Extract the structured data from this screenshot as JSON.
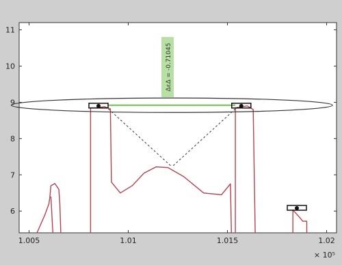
{
  "chart_data": {
    "type": "line",
    "title": "",
    "xlabel": "",
    "ylabel": "",
    "xlim": [
      1.0045,
      1.0205
    ],
    "ylim": [
      5.4,
      11.2
    ],
    "x_exponent_label": "× 10⁵",
    "x_ticks": [
      1.005,
      1.01,
      1.015,
      1.02
    ],
    "x_tick_labels": [
      "1.005",
      "1.01",
      "1.015",
      "1.02"
    ],
    "y_ticks": [
      6,
      7,
      8,
      9,
      10,
      11
    ],
    "y_tick_labels": [
      "6",
      "7",
      "8",
      "9",
      "10",
      "11"
    ],
    "grid": false,
    "series": [
      {
        "color": "#b5414b",
        "segments": [
          [
            [
              1.0054,
              5.4
            ],
            [
              1.0058,
              5.9
            ],
            [
              1.006,
              6.2
            ],
            [
              1.00605,
              6.4
            ],
            [
              1.0061,
              6.7
            ],
            [
              1.0063,
              6.76
            ],
            [
              1.0065,
              6.6
            ],
            [
              1.00655,
              6.2
            ],
            [
              1.0066,
              5.4
            ]
          ],
          [
            [
              1.0061,
              6.4
            ],
            [
              1.0062,
              5.4
            ]
          ],
          [
            [
              1.0081,
              5.4
            ],
            [
              1.0081,
              7.0
            ],
            [
              1.0081,
              8.85
            ],
            [
              1.0084,
              8.85
            ],
            [
              1.0088,
              8.88
            ],
            [
              1.0091,
              8.82
            ],
            [
              1.00915,
              6.8
            ],
            [
              1.0096,
              6.5
            ],
            [
              1.0102,
              6.7
            ],
            [
              1.0108,
              7.05
            ],
            [
              1.0114,
              7.22
            ],
            [
              1.012,
              7.2
            ],
            [
              1.0128,
              6.95
            ],
            [
              1.0138,
              6.5
            ],
            [
              1.0147,
              6.45
            ],
            [
              1.01515,
              6.75
            ],
            [
              1.0152,
              5.4
            ]
          ],
          [
            [
              1.0154,
              5.4
            ],
            [
              1.0154,
              8.85
            ],
            [
              1.016,
              8.9
            ],
            [
              1.0163,
              8.8
            ],
            [
              1.0164,
              5.4
            ]
          ],
          [
            [
              1.0183,
              5.4
            ],
            [
              1.0183,
              6.03
            ],
            [
              1.0186,
              5.85
            ],
            [
              1.0188,
              5.72
            ],
            [
              1.019,
              5.72
            ],
            [
              1.019,
              5.4
            ]
          ]
        ]
      }
    ],
    "annotations": [
      {
        "type": "ellipse",
        "center": [
          1.0122,
          8.92
        ],
        "rx": 0.0081,
        "ry": 0.2,
        "stroke": "#333333"
      },
      {
        "type": "dashed-lines",
        "from": [
          [
            1.009,
            8.82
          ],
          [
            1.0154,
            8.82
          ]
        ],
        "to": [
          1.0122,
          7.22
        ],
        "stroke": "#333333"
      },
      {
        "type": "markers",
        "points": [
          [
            1.0085,
            8.9
          ],
          [
            1.0157,
            8.9
          ],
          [
            1.0185,
            6.08
          ]
        ],
        "color": "#111111"
      },
      {
        "type": "label",
        "text": "ΔεΔ = -0.71045",
        "rotated": true,
        "background": "#b9e0a4"
      }
    ],
    "highlight_segment": {
      "from": [
        1.009,
        8.92
      ],
      "to": [
        1.0154,
        8.92
      ],
      "color": "#6cbf4b"
    }
  }
}
